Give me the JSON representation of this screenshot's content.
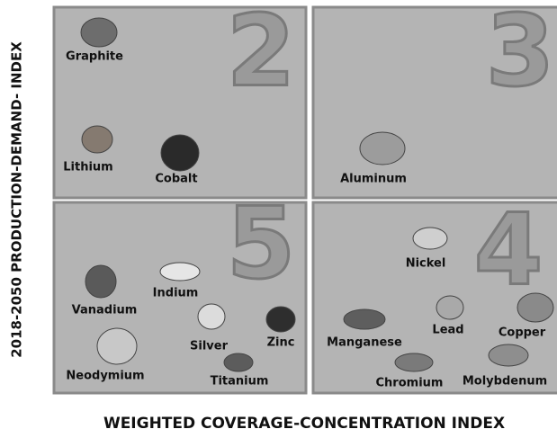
{
  "y_axis_label": "2018-2050 PRODUCTION-DEMAND- INDEX",
  "x_axis_label": "WEIGHTED COVERAGE-CONCENTRATION INDEX",
  "quadrants": [
    {
      "number": 2,
      "items": [
        "Graphite",
        "Lithium",
        "Cobalt"
      ]
    },
    {
      "number": 3,
      "items": [
        "Aluminum"
      ]
    },
    {
      "number": 5,
      "items": [
        "Vanadium",
        "Indium",
        "Silver",
        "Zinc",
        "Neodymium",
        "Titanium"
      ]
    },
    {
      "number": 4,
      "items": [
        "Nickel",
        "Manganese",
        "Lead",
        "Copper",
        "Chromium",
        "Molybdenum"
      ]
    }
  ]
}
